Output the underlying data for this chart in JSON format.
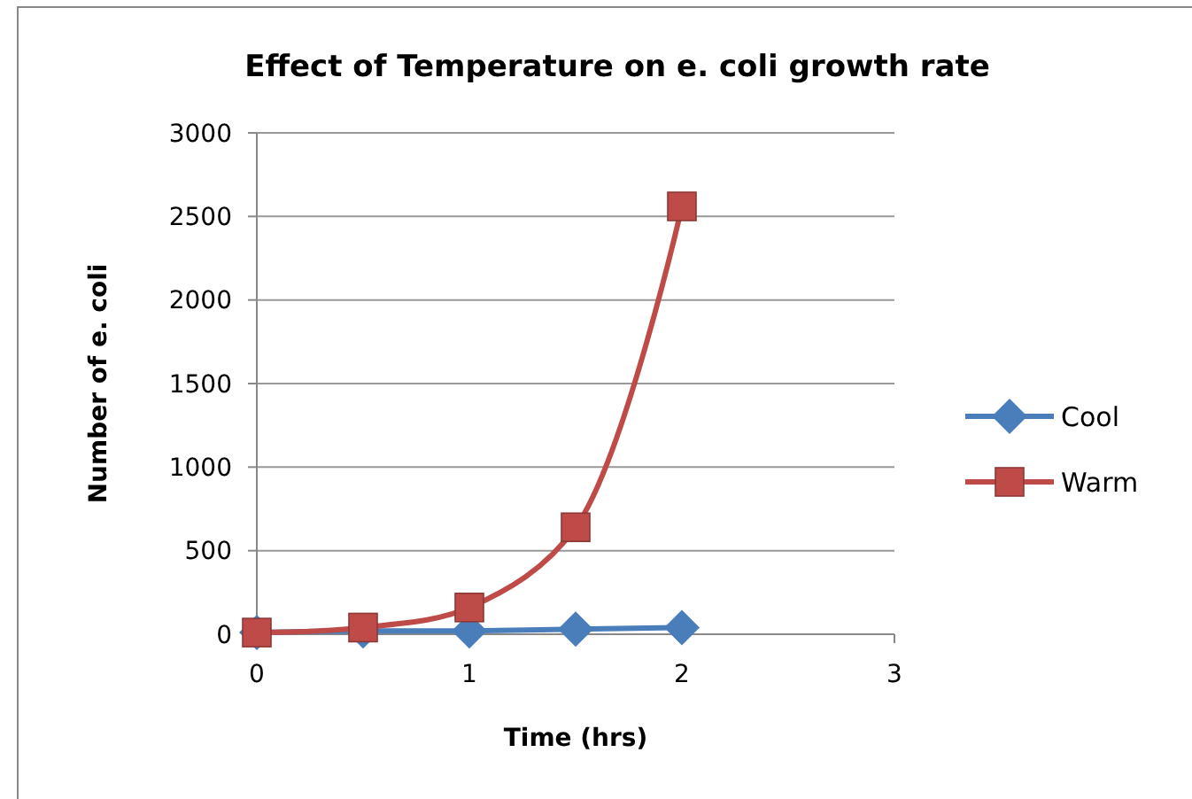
{
  "chart_data": {
    "type": "line",
    "title": "Effect of Temperature on e. coli growth rate",
    "xlabel": "Time (hrs)",
    "ylabel": "Number of e. coli",
    "x": [
      0,
      0.5,
      1,
      1.5,
      2
    ],
    "xlim": [
      0,
      3
    ],
    "xticks": [
      0,
      1,
      2,
      3
    ],
    "ylim": [
      0,
      3000
    ],
    "yticks": [
      0,
      500,
      1000,
      1500,
      2000,
      2500,
      3000
    ],
    "grid": "y",
    "legend": "right",
    "series": [
      {
        "name": "Cool",
        "color": "#4a7ebb",
        "marker": "diamond",
        "values": [
          10,
          20,
          20,
          30,
          40
        ]
      },
      {
        "name": "Warm",
        "color": "#be4b48",
        "marker": "square",
        "values": [
          10,
          40,
          160,
          640,
          2560
        ]
      }
    ]
  }
}
